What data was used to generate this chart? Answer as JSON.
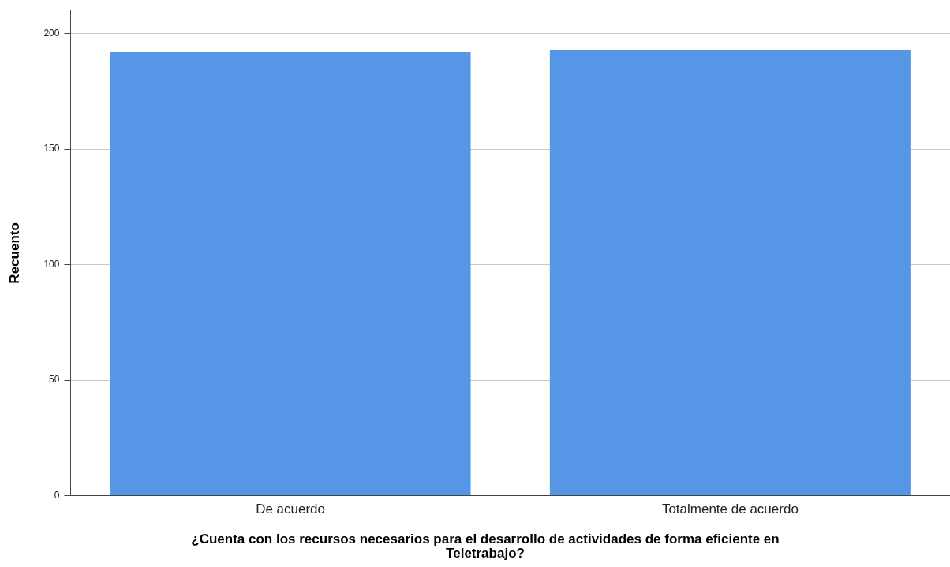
{
  "chart_data": {
    "type": "bar",
    "xlabel": "¿Cuenta con los recursos necesarios para el desarrollo de actividades de forma eficiente en Teletrabajo?",
    "ylabel": "Recuento",
    "categories": [
      "De acuerdo",
      "Totalmente de acuerdo"
    ],
    "values": [
      192,
      193
    ],
    "color": "#5596e6",
    "ylim": [
      0,
      210
    ],
    "yticks": [
      0,
      50,
      100,
      150,
      200
    ],
    "grid": "y",
    "legend": false
  }
}
